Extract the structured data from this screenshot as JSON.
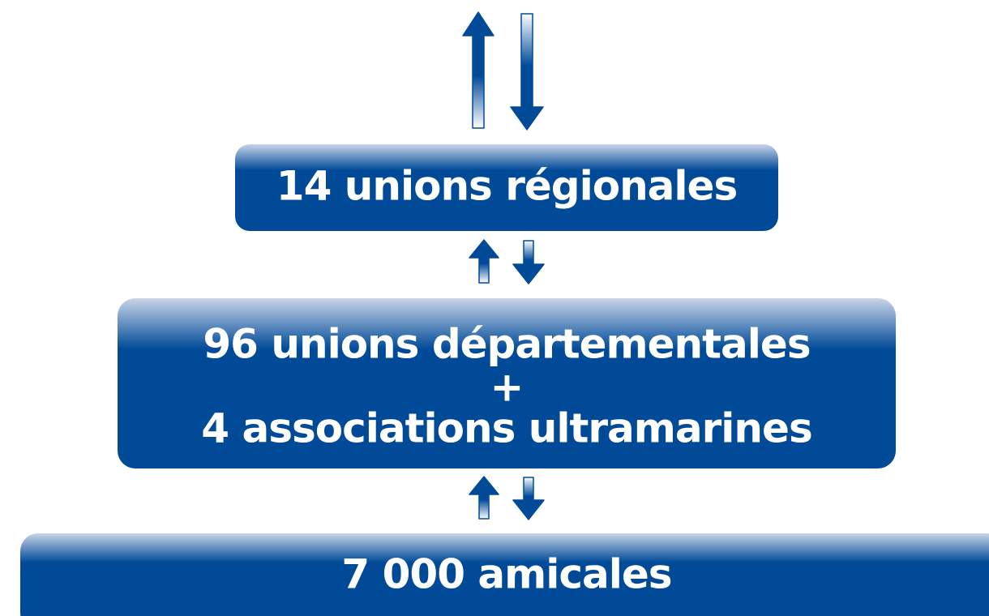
{
  "nodes": [
    {
      "label": "14 unions régionales"
    },
    {
      "lines": [
        "96 unions départementales",
        "+",
        "4 associations ultramarines"
      ]
    },
    {
      "label": "7 000 amicales"
    }
  ]
}
